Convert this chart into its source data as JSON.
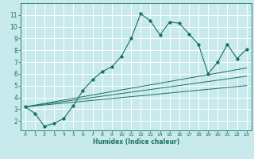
{
  "xlabel": "Humidex (Indice chaleur)",
  "bg_color": "#c8eaec",
  "line_color": "#1a7060",
  "grid_color": "#ffffff",
  "xlim": [
    -0.5,
    23.5
  ],
  "ylim": [
    1.2,
    12.0
  ],
  "yticks": [
    2,
    3,
    4,
    5,
    6,
    7,
    8,
    9,
    10,
    11
  ],
  "xticks": [
    0,
    1,
    2,
    3,
    4,
    5,
    6,
    7,
    8,
    9,
    10,
    11,
    12,
    13,
    14,
    15,
    16,
    17,
    18,
    19,
    20,
    21,
    22,
    23
  ],
  "main_line": [
    [
      0,
      3.2
    ],
    [
      1,
      2.65
    ],
    [
      2,
      1.55
    ],
    [
      3,
      1.8
    ],
    [
      4,
      2.2
    ],
    [
      5,
      3.3
    ],
    [
      6,
      4.6
    ],
    [
      7,
      5.5
    ],
    [
      8,
      6.2
    ],
    [
      9,
      6.6
    ],
    [
      10,
      7.5
    ],
    [
      11,
      9.0
    ],
    [
      12,
      11.1
    ],
    [
      13,
      10.5
    ],
    [
      14,
      9.3
    ],
    [
      15,
      10.4
    ],
    [
      16,
      10.3
    ],
    [
      17,
      9.4
    ],
    [
      18,
      8.5
    ],
    [
      19,
      6.0
    ],
    [
      20,
      7.0
    ],
    [
      21,
      8.5
    ],
    [
      22,
      7.3
    ],
    [
      23,
      8.1
    ]
  ],
  "ref_lines": [
    [
      [
        0,
        3.2
      ],
      [
        23,
        5.0
      ]
    ],
    [
      [
        0,
        3.2
      ],
      [
        23,
        5.8
      ]
    ],
    [
      [
        0,
        3.2
      ],
      [
        23,
        6.5
      ]
    ]
  ]
}
